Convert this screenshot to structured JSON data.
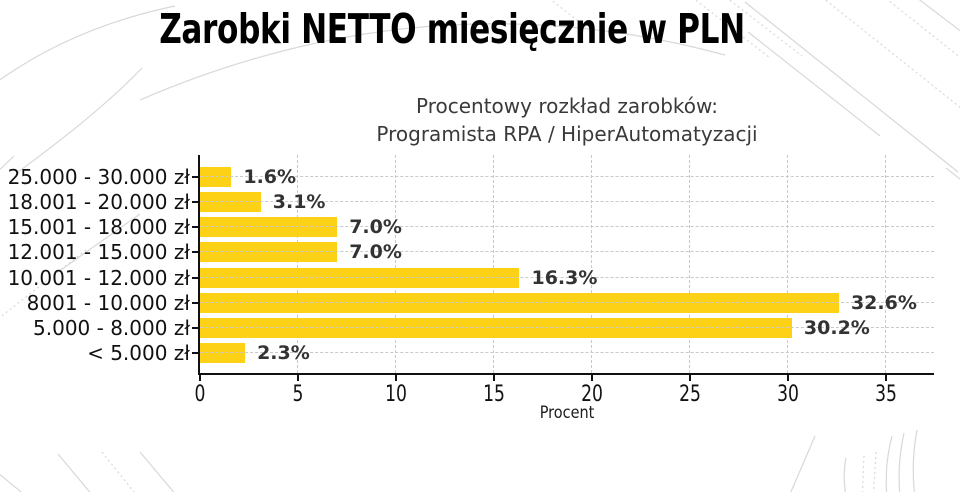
{
  "page": {
    "title": "Zarobki NETTO miesięcznie w PLN"
  },
  "chart_data": {
    "type": "bar",
    "orientation": "horizontal",
    "title_lines": [
      "Procentowy rozkład zarobków:",
      "Programista RPA / HiperAutomatyzacji"
    ],
    "categories": [
      "25.000 - 30.000 zł",
      "18.001 - 20.000 zł",
      "15.001 - 18.000 zł",
      "12.001 - 15.000 zł",
      "10.001 - 12.000 zł",
      "8001 - 10.000 zł",
      "5.000 - 8.000 zł",
      "< 5.000 zł"
    ],
    "values": [
      1.6,
      3.1,
      7.0,
      7.0,
      16.3,
      32.6,
      30.2,
      2.3
    ],
    "value_labels": [
      "1.6%",
      "3.1%",
      "7.0%",
      "7.0%",
      "16.3%",
      "32.6%",
      "30.2%",
      "2.3%"
    ],
    "xlabel": "Procent",
    "xticks": [
      0,
      5,
      10,
      15,
      20,
      25,
      30,
      35
    ],
    "xlim": [
      0,
      37.5
    ],
    "grid": "dashed",
    "legend": "none",
    "colors": {
      "bar": "#FCD116",
      "grid": "#C9C9C9",
      "axis": "#111111",
      "value_label": "#333333",
      "title": "#000000",
      "chart_title": "#3A3A3A",
      "background": "#FFFFFF",
      "decor_lines": "#D8D8D8"
    }
  }
}
